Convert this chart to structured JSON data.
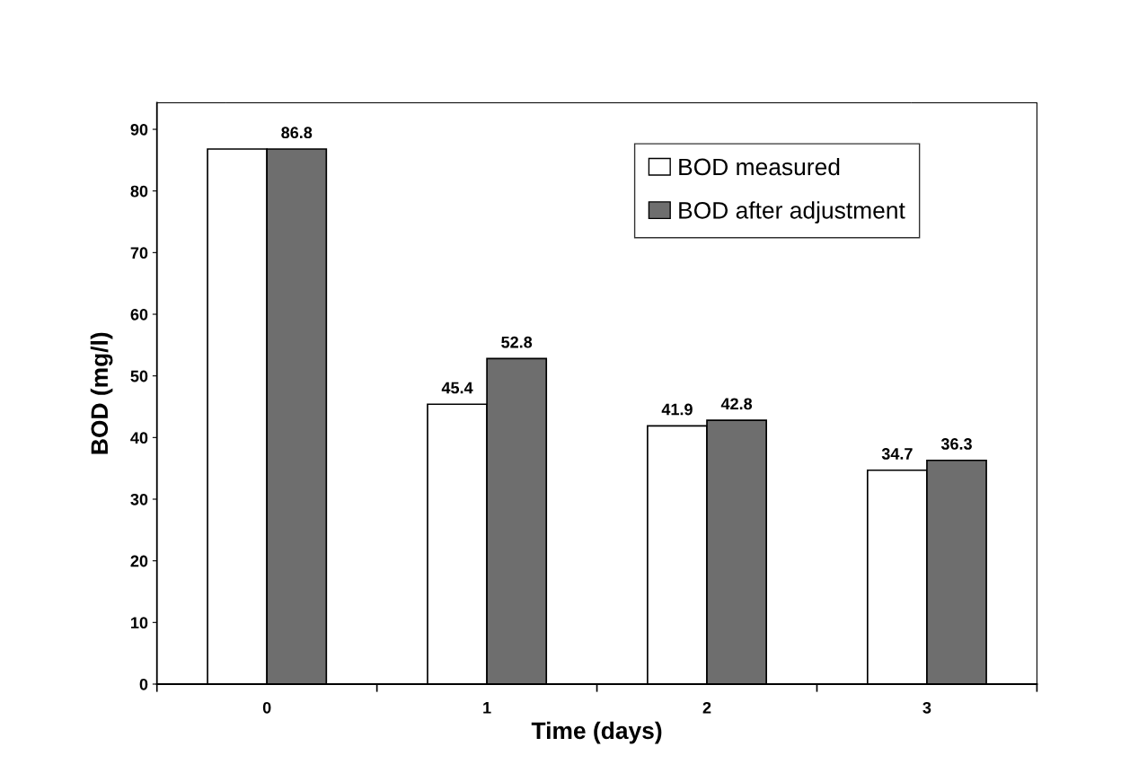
{
  "chart_data": {
    "type": "bar",
    "xlabel": "Time (days)",
    "ylabel": "BOD (mg/l)",
    "categories": [
      "0",
      "1",
      "2",
      "3"
    ],
    "series": [
      {
        "name": "BOD measured",
        "color": "#ffffff",
        "values": [
          86.8,
          45.4,
          41.9,
          34.7
        ],
        "value_labels": [
          null,
          "45.4",
          "41.9",
          "34.7"
        ]
      },
      {
        "name": "BOD after adjustment",
        "color": "#6e6e6e",
        "values": [
          86.8,
          52.8,
          42.8,
          36.3
        ],
        "value_labels": [
          "86.8",
          "52.8",
          "42.8",
          "36.3"
        ]
      }
    ],
    "ylim": [
      0,
      94.3
    ],
    "yticks": [
      0,
      10,
      20,
      30,
      40,
      50,
      60,
      70,
      80,
      90
    ],
    "grid": false,
    "legend": "top right"
  }
}
